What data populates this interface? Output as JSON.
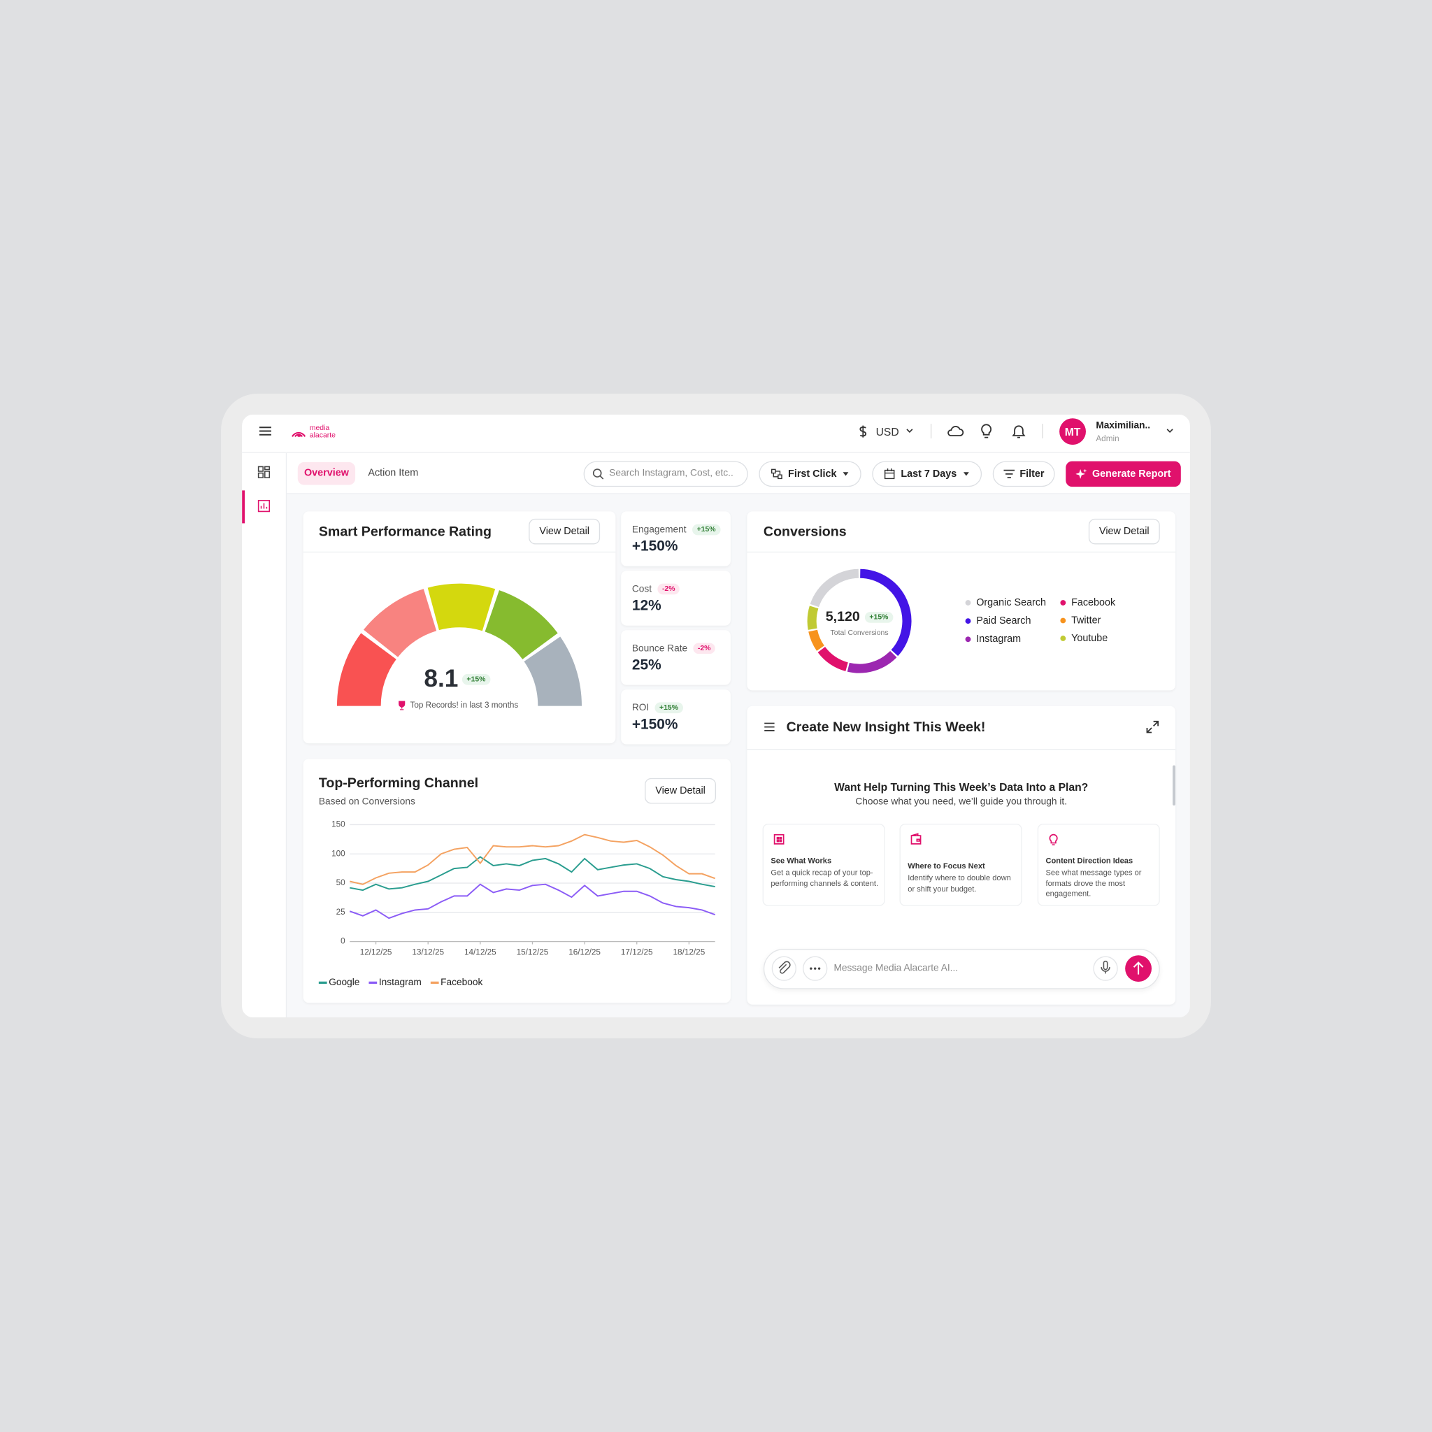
{
  "header": {
    "logo": [
      "media",
      "alacarte"
    ],
    "currency": "USD",
    "user_initials": "MT",
    "user_name": "Maximilian..",
    "user_role": "Admin"
  },
  "toolbar": {
    "tabs": [
      "Overview",
      "Action Item"
    ],
    "search": "Search Instagram, Cost, etc..",
    "attribution": "First Click",
    "date_range": "Last 7 Days",
    "filter": "Filter",
    "report": "Generate Report"
  },
  "rating": {
    "title": "Smart Performance Rating",
    "button": "View Detail",
    "score": 8.1,
    "change": "+15%",
    "note": "Top Records! in last 3 months"
  },
  "metrics": [
    {
      "label": "Engagement",
      "change": "+15%",
      "value": "+150%"
    },
    {
      "label": "Cost",
      "change": "-2%",
      "value": "12%"
    },
    {
      "label": "Bounce Rate",
      "change": "-2%",
      "value": "25%"
    },
    {
      "label": "ROI",
      "change": "+15%",
      "value": "+150%"
    }
  ],
  "conversions": {
    "title": "Conversions",
    "button": "View Detail",
    "total": "5,120",
    "change": "+15%",
    "total_label": "Total Conversions"
  },
  "channel": {
    "button": "View Detail"
  },
  "insight": {
    "title": "Create New Insight This Week!",
    "heading": "Want Help Turning This Week’s Data Into a Plan?",
    "subheading": "Choose what you need, we’ll guide you through it.",
    "cards": [
      {
        "title": "See What Works",
        "text": "Get a quick recap of your top-performing channels & content."
      },
      {
        "title": "Where to Focus Next",
        "text": "Identify where to double down or shift your budget."
      },
      {
        "title": "Content Direction Ideas",
        "text": "See what message types or formats drove the most engagement."
      }
    ],
    "input_placeholder": "Message Media Alacarte AI..."
  },
  "chart_data": [
    {
      "type": "donut",
      "categories": [
        "Organic Search",
        "Paid Search",
        "Instagram",
        "Facebook",
        "Twitter",
        "Youtube"
      ],
      "values": [
        20,
        37,
        17,
        11,
        7,
        8
      ],
      "colors": [
        "#d4d4d8",
        "#4314e6",
        "#9c27b0",
        "#e0116c",
        "#f7931e",
        "#c0ca33"
      ]
    },
    {
      "type": "line",
      "title": "Top-Performing Channel",
      "subtitle": "Based on Conversions",
      "categories": [
        null,
        null,
        "12/12/25",
        null,
        null,
        null,
        "13/12/25",
        null,
        null,
        null,
        "14/12/25",
        null,
        null,
        null,
        "15/12/25",
        null,
        null,
        null,
        "16/12/25",
        null,
        null,
        null,
        "17/12/25",
        null,
        null,
        null,
        "18/12/25",
        null,
        null
      ],
      "series": [
        {
          "name": "Google",
          "color": "#2a9d8f",
          "values": [
            46,
            44,
            49,
            45,
            46,
            49,
            53,
            64,
            75,
            77,
            95,
            80,
            83,
            80,
            89,
            92,
            83,
            69,
            92,
            73,
            77,
            81,
            83,
            75,
            61,
            56,
            53,
            49,
            47
          ]
        },
        {
          "name": "Instagram",
          "color": "#8b5cf6",
          "values": [
            26,
            22,
            27,
            20,
            24,
            27,
            28,
            34,
            39,
            39,
            49,
            42,
            45,
            44,
            48,
            49,
            44,
            38,
            48,
            39,
            41,
            43,
            43,
            39,
            33,
            30,
            29,
            27,
            23
          ]
        },
        {
          "name": "Facebook",
          "color": "#f4a261",
          "values": [
            53,
            49,
            59,
            67,
            69,
            69,
            81,
            100,
            108,
            111,
            84,
            114,
            112,
            112,
            114,
            112,
            114,
            122,
            133,
            128,
            122,
            120,
            123,
            112,
            98,
            80,
            66,
            66,
            58
          ]
        }
      ],
      "ylim": [
        0,
        150
      ],
      "yticks": [
        0,
        25,
        50,
        100,
        150
      ],
      "grid": true,
      "legend": "bottom-left"
    }
  ]
}
